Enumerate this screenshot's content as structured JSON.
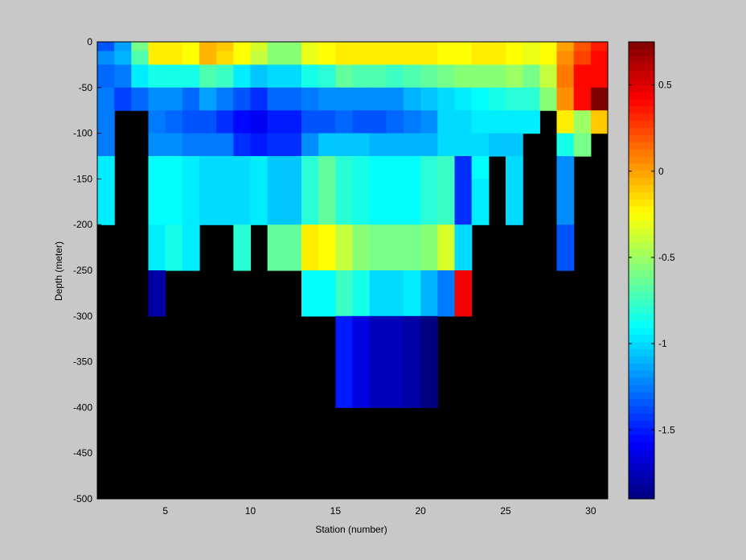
{
  "chart_data": {
    "type": "heatmap",
    "title": "",
    "xlabel": "Station (number)",
    "ylabel": "Depth (meter)",
    "xlim": [
      1,
      31
    ],
    "ylim": [
      -500,
      0
    ],
    "x_ticks": [
      5,
      10,
      15,
      20,
      25,
      30
    ],
    "y_ticks": [
      0,
      -50,
      -100,
      -150,
      -200,
      -250,
      -300,
      -350,
      -400,
      -450,
      -500
    ],
    "colorbar": {
      "colormap": "jet",
      "clim": [
        -1.9,
        0.75
      ],
      "ticks": [
        0.5,
        0,
        -0.5,
        -1,
        -1.5
      ]
    },
    "missing_color": "#000000",
    "background_color": "#c8c8c8",
    "stations": [
      1,
      2,
      3,
      4,
      5,
      6,
      7,
      8,
      9,
      10,
      11,
      12,
      13,
      14,
      15,
      16,
      17,
      18,
      19,
      20,
      21,
      22,
      23,
      24,
      25,
      26,
      27,
      28,
      29,
      30
    ],
    "depths": [
      0,
      -10,
      -25,
      -50,
      -75,
      -100,
      -125,
      -150,
      -200,
      -250,
      -300,
      -400
    ],
    "values": [
      [
        -1.35,
        -1.15,
        -0.6,
        -0.2,
        -0.2,
        -0.25,
        -0.05,
        -0.1,
        -0.25,
        -0.35,
        -0.55,
        -0.55,
        -0.3,
        -0.25,
        -0.2,
        -0.2,
        -0.2,
        -0.2,
        -0.2,
        -0.2,
        -0.25,
        -0.25,
        -0.2,
        -0.2,
        -0.25,
        -0.3,
        -0.25,
        0.0,
        0.2,
        0.35
      ],
      [
        -1.2,
        -1.1,
        -0.7,
        -0.2,
        -0.2,
        -0.25,
        -0.05,
        -0.15,
        -0.25,
        -0.4,
        -0.55,
        -0.55,
        -0.3,
        -0.25,
        -0.2,
        -0.2,
        -0.2,
        -0.2,
        -0.2,
        -0.2,
        -0.25,
        -0.25,
        -0.2,
        -0.2,
        -0.25,
        -0.3,
        -0.25,
        0.05,
        0.25,
        0.4
      ],
      [
        -1.3,
        -1.25,
        -0.95,
        -0.85,
        -0.85,
        -0.85,
        -0.7,
        -0.75,
        -0.95,
        -1.05,
        -1.0,
        -1.0,
        -0.85,
        -0.8,
        -0.65,
        -0.7,
        -0.7,
        -0.75,
        -0.7,
        -0.65,
        -0.6,
        -0.55,
        -0.55,
        -0.55,
        -0.5,
        -0.6,
        -0.4,
        0.1,
        0.4,
        0.4
      ],
      [
        -1.25,
        -1.4,
        -1.3,
        -1.2,
        -1.2,
        -1.3,
        -1.15,
        -1.25,
        -1.35,
        -1.45,
        -1.3,
        -1.3,
        -1.25,
        -1.2,
        -1.2,
        -1.2,
        -1.2,
        -1.2,
        -1.1,
        -1.05,
        -1.0,
        -0.95,
        -0.9,
        -0.85,
        -0.8,
        -0.8,
        -0.55,
        0.05,
        0.4,
        0.75
      ],
      [
        -1.25,
        null,
        null,
        -1.25,
        -1.3,
        -1.35,
        -1.35,
        -1.45,
        -1.55,
        -1.6,
        -1.5,
        -1.5,
        -1.35,
        -1.35,
        -1.3,
        -1.35,
        -1.35,
        -1.3,
        -1.25,
        -1.2,
        -1.0,
        -1.0,
        -0.95,
        -0.95,
        -0.95,
        -0.95,
        null,
        -0.2,
        -0.5,
        -0.1
      ],
      [
        -1.25,
        null,
        null,
        -1.2,
        -1.2,
        -1.25,
        -1.25,
        -1.25,
        -1.45,
        -1.5,
        -1.45,
        -1.45,
        -1.2,
        -1.05,
        -1.05,
        -1.05,
        -1.1,
        -1.1,
        -1.1,
        -1.1,
        -1.0,
        -1.0,
        -1.0,
        -1.05,
        -1.05,
        null,
        null,
        -0.85,
        -0.6,
        null
      ],
      [
        -0.95,
        null,
        null,
        -0.9,
        -0.9,
        -0.95,
        -1.0,
        -1.0,
        -1.0,
        -0.95,
        -1.05,
        -1.05,
        -0.8,
        -0.65,
        -0.8,
        -0.85,
        -0.9,
        -0.9,
        -0.9,
        -0.8,
        -0.75,
        -1.45,
        -0.9,
        null,
        -1.0,
        null,
        null,
        -1.2,
        null,
        null
      ],
      [
        -0.95,
        null,
        null,
        -0.9,
        -0.9,
        -0.95,
        -1.0,
        -1.0,
        -1.0,
        -0.95,
        -1.05,
        -1.05,
        -0.8,
        -0.65,
        -0.8,
        -0.85,
        -0.9,
        -0.9,
        -0.9,
        -0.8,
        -0.75,
        -1.45,
        -0.95,
        null,
        -1.0,
        null,
        null,
        -1.2,
        null,
        null
      ],
      [
        null,
        null,
        null,
        -0.95,
        -0.85,
        -0.95,
        null,
        null,
        -0.8,
        null,
        -0.65,
        -0.65,
        -0.2,
        -0.25,
        -0.4,
        -0.55,
        -0.6,
        -0.6,
        -0.6,
        -0.55,
        -0.35,
        -1.0,
        null,
        null,
        null,
        null,
        null,
        -1.35,
        null,
        null
      ],
      [
        null,
        null,
        null,
        -1.8,
        null,
        null,
        null,
        null,
        null,
        null,
        null,
        null,
        -0.9,
        -0.9,
        -0.75,
        -0.85,
        -1.0,
        -1.0,
        -0.95,
        -1.1,
        -1.25,
        0.45,
        null,
        null,
        null,
        null,
        null,
        null,
        null,
        null
      ],
      [
        null,
        null,
        null,
        null,
        null,
        null,
        null,
        null,
        null,
        null,
        null,
        null,
        null,
        null,
        -1.5,
        -1.65,
        -1.75,
        -1.75,
        -1.8,
        -1.9,
        null,
        null,
        null,
        null,
        null,
        null,
        null,
        null,
        null,
        null
      ],
      [
        null,
        null,
        null,
        null,
        null,
        null,
        null,
        null,
        null,
        null,
        null,
        null,
        null,
        null,
        null,
        null,
        null,
        null,
        null,
        null,
        null,
        null,
        null,
        null,
        null,
        null,
        null,
        null,
        null,
        null
      ]
    ]
  }
}
